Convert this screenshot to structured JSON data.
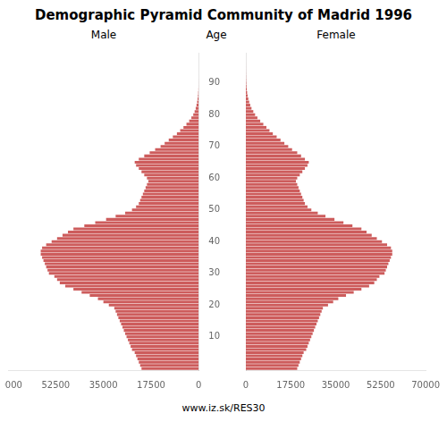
{
  "chart_data": {
    "type": "bar",
    "orientation": "horizontal",
    "title": "Demographic Pyramid Community of Madrid 1996",
    "ylabel": "Age",
    "annotations": [
      "www.iz.sk/RES30"
    ],
    "categories": [
      null,
      null,
      null,
      null,
      null,
      null,
      null,
      null,
      null,
      null,
      10,
      null,
      null,
      null,
      null,
      null,
      null,
      null,
      null,
      null,
      20,
      null,
      null,
      null,
      null,
      null,
      null,
      null,
      null,
      null,
      30,
      null,
      null,
      null,
      null,
      null,
      null,
      null,
      null,
      null,
      40,
      null,
      null,
      null,
      null,
      null,
      null,
      null,
      null,
      null,
      50,
      null,
      null,
      null,
      null,
      null,
      null,
      null,
      null,
      null,
      60,
      null,
      null,
      null,
      null,
      null,
      null,
      null,
      null,
      null,
      70,
      null,
      null,
      null,
      null,
      null,
      null,
      null,
      null,
      null,
      80,
      null,
      null,
      null,
      null,
      null,
      null,
      null,
      null,
      null,
      90,
      null,
      null,
      null,
      null,
      null,
      null,
      null,
      null,
      null
    ],
    "series": [
      {
        "name": "Male",
        "color": "#CD5C5C",
        "values": [
          21000,
          21500,
          22000,
          22500,
          23000,
          23500,
          24500,
          25000,
          25500,
          26000,
          26500,
          27000,
          27500,
          28000,
          28500,
          29000,
          29500,
          30000,
          30500,
          31000,
          33000,
          35000,
          37000,
          40000,
          43000,
          46000,
          49000,
          51000,
          52000,
          53000,
          55000,
          55500,
          56000,
          56500,
          57000,
          57500,
          58000,
          58000,
          57500,
          56000,
          54000,
          52000,
          50000,
          48000,
          46000,
          42000,
          38000,
          34000,
          30500,
          27000,
          24500,
          23000,
          22000,
          21500,
          21000,
          20500,
          20000,
          19500,
          19000,
          18500,
          19000,
          20000,
          21000,
          22000,
          23000,
          23500,
          22000,
          20000,
          18000,
          16000,
          14000,
          12500,
          11000,
          9500,
          8000,
          6800,
          5600,
          4500,
          3500,
          2700,
          2000,
          1500,
          1100,
          800,
          580,
          400,
          280,
          190,
          120,
          75,
          45,
          27,
          16,
          9,
          5,
          3,
          2,
          1,
          1,
          0
        ]
      },
      {
        "name": "Female",
        "color": "#CD5C5C",
        "values": [
          20000,
          20500,
          21000,
          21500,
          22000,
          22500,
          23500,
          24000,
          24500,
          25000,
          25500,
          26000,
          26500,
          27000,
          27500,
          28000,
          28500,
          29000,
          29500,
          30000,
          32000,
          34000,
          36000,
          39000,
          42000,
          45000,
          48000,
          50000,
          51000,
          52000,
          54000,
          54500,
          55000,
          55500,
          56000,
          56500,
          57000,
          57000,
          56500,
          55000,
          53000,
          51000,
          49000,
          47000,
          45000,
          41500,
          38000,
          34500,
          31000,
          28000,
          25500,
          24000,
          23000,
          22500,
          22000,
          21500,
          21000,
          20500,
          20000,
          19500,
          20000,
          21000,
          22000,
          23000,
          24000,
          24500,
          23000,
          21500,
          20000,
          18000,
          16500,
          15000,
          13500,
          12000,
          10500,
          9200,
          8000,
          6800,
          5600,
          4500,
          3600,
          2900,
          2200,
          1700,
          1300,
          950,
          700,
          500,
          350,
          230,
          150,
          95,
          58,
          34,
          19,
          11,
          6,
          3,
          2,
          1
        ]
      }
    ],
    "xlim": [
      0,
      70000
    ],
    "xticks": [
      0,
      17500,
      35000,
      52500,
      70000
    ],
    "grid": false
  }
}
